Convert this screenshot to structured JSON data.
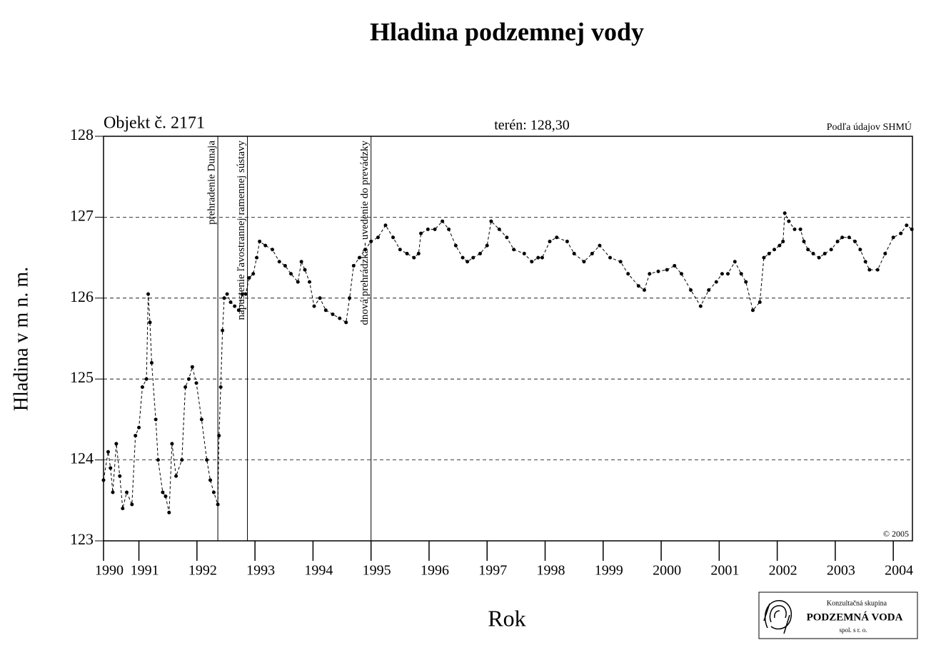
{
  "chart_data": {
    "type": "line",
    "title": "Hladina podzemnej vody",
    "object_label": "Objekt č. 2171",
    "terrain_label": "terén: 128,30",
    "source_label": "Podľa údajov SHMÚ",
    "copyright": "© 2005",
    "y_label": "Hladina v m n. m.",
    "x_label": "Rok",
    "logo": {
      "line1": "Konzultačná skupina",
      "line2": "PODZEMNÁ VODA",
      "line3": "spol. s r. o."
    },
    "color": "#000000",
    "grid": true,
    "xlim": [
      1990.39,
      2004.33
    ],
    "ylim": [
      123,
      128
    ],
    "yticks": [
      123,
      124,
      125,
      126,
      127,
      128
    ],
    "xticks": [
      {
        "value": 1990.39,
        "label": "1990"
      },
      1991,
      1992,
      1993,
      1994,
      1995,
      1996,
      1997,
      1998,
      1999,
      2000,
      2001,
      2002,
      2003,
      2004
    ],
    "events": [
      {
        "x": 1992.36,
        "label": "prehradenie Dunaja"
      },
      {
        "x": 1992.87,
        "label": "napustenie ľavostrannej ramennej sústavy"
      },
      {
        "x": 1995.0,
        "label": "dnová prehrádzka - uvedenie do prevádzky"
      }
    ],
    "x": [
      1990.39,
      1990.47,
      1990.51,
      1990.55,
      1990.61,
      1990.67,
      1990.72,
      1990.79,
      1990.88,
      1990.94,
      1991.0,
      1991.06,
      1991.13,
      1991.16,
      1991.19,
      1991.22,
      1991.29,
      1991.33,
      1991.41,
      1991.46,
      1991.52,
      1991.57,
      1991.64,
      1991.74,
      1991.8,
      1991.86,
      1991.92,
      1991.99,
      1992.08,
      1992.17,
      1992.23,
      1992.29,
      1992.36,
      1992.38,
      1992.41,
      1992.44,
      1992.47,
      1992.52,
      1992.58,
      1992.65,
      1992.72,
      1992.78,
      1992.84,
      1992.9,
      1992.97,
      1993.03,
      1993.08,
      1993.18,
      1993.3,
      1993.42,
      1993.52,
      1993.62,
      1993.74,
      1993.8,
      1993.86,
      1993.94,
      1994.02,
      1994.12,
      1994.22,
      1994.34,
      1994.46,
      1994.57,
      1994.63,
      1994.7,
      1994.8,
      1994.9,
      1995.0,
      1995.12,
      1995.25,
      1995.38,
      1995.5,
      1995.62,
      1995.74,
      1995.82,
      1995.86,
      1995.98,
      1996.1,
      1996.23,
      1996.34,
      1996.46,
      1996.58,
      1996.66,
      1996.76,
      1996.88,
      1997.0,
      1997.07,
      1997.21,
      1997.34,
      1997.46,
      1997.64,
      1997.77,
      1997.88,
      1997.95,
      1998.08,
      1998.2,
      1998.38,
      1998.5,
      1998.67,
      1998.81,
      1998.94,
      1999.12,
      1999.3,
      1999.43,
      1999.61,
      1999.71,
      1999.8,
      1999.95,
      2000.1,
      2000.23,
      2000.35,
      2000.51,
      2000.68,
      2000.82,
      2000.95,
      2001.05,
      2001.15,
      2001.27,
      2001.38,
      2001.46,
      2001.58,
      2001.7,
      2001.77,
      2001.86,
      2001.95,
      2002.04,
      2002.1,
      2002.13,
      2002.2,
      2002.3,
      2002.4,
      2002.46,
      2002.53,
      2002.62,
      2002.72,
      2002.82,
      2002.93,
      2003.04,
      2003.12,
      2003.24,
      2003.34,
      2003.43,
      2003.52,
      2003.59,
      2003.73,
      2003.86,
      2004.0,
      2004.13,
      2004.23,
      2004.32
    ],
    "values": [
      123.75,
      124.1,
      123.9,
      123.6,
      124.2,
      123.8,
      123.4,
      123.6,
      123.45,
      124.3,
      124.4,
      124.9,
      125.0,
      126.05,
      125.7,
      125.2,
      124.5,
      124.0,
      123.6,
      123.55,
      123.35,
      124.2,
      123.8,
      124.0,
      124.9,
      125.0,
      125.15,
      124.95,
      124.5,
      124.0,
      123.75,
      123.6,
      123.45,
      124.3,
      124.9,
      125.6,
      126.0,
      126.05,
      125.95,
      125.9,
      125.85,
      126.05,
      126.05,
      126.25,
      126.3,
      126.5,
      126.7,
      126.65,
      126.6,
      126.45,
      126.4,
      126.3,
      126.2,
      126.45,
      126.35,
      126.2,
      125.9,
      126.0,
      125.85,
      125.8,
      125.75,
      125.7,
      126.0,
      126.4,
      126.5,
      126.6,
      126.7,
      126.75,
      126.9,
      126.75,
      126.6,
      126.55,
      126.5,
      126.55,
      126.8,
      126.85,
      126.85,
      126.95,
      126.85,
      126.65,
      126.5,
      126.45,
      126.5,
      126.55,
      126.65,
      126.95,
      126.85,
      126.75,
      126.6,
      126.55,
      126.45,
      126.5,
      126.5,
      126.7,
      126.75,
      126.7,
      126.55,
      126.45,
      126.55,
      126.65,
      126.5,
      126.45,
      126.3,
      126.15,
      126.1,
      126.3,
      126.33,
      126.35,
      126.4,
      126.3,
      126.1,
      125.9,
      126.1,
      126.2,
      126.3,
      126.3,
      126.45,
      126.3,
      126.2,
      125.85,
      125.95,
      126.5,
      126.55,
      126.6,
      126.65,
      126.7,
      127.05,
      126.95,
      126.85,
      126.85,
      126.7,
      126.6,
      126.55,
      126.5,
      126.55,
      126.6,
      126.7,
      126.75,
      126.75,
      126.7,
      126.6,
      126.45,
      126.35,
      126.35,
      126.55,
      126.75,
      126.8,
      126.9,
      126.85
    ]
  }
}
